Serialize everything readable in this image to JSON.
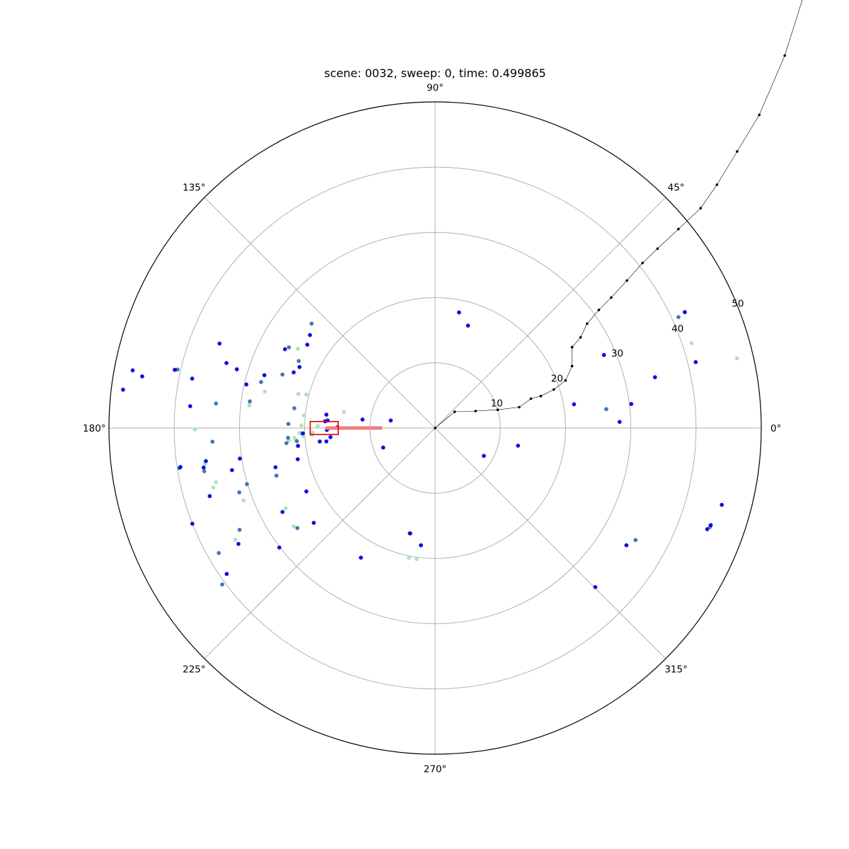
{
  "chart_data": {
    "type": "scatter",
    "projection": "polar",
    "title": "scene: 0032, sweep: 0, time: 0.499865",
    "theta_unit": "degrees",
    "rlim": [
      0,
      50
    ],
    "grid": true,
    "theta_tick_labels": [
      "0°",
      "45°",
      "90°",
      "135°",
      "180°",
      "225°",
      "270°",
      "315°"
    ],
    "r_ticks": [
      10,
      20,
      30,
      40,
      50
    ],
    "r_tick_labels": [
      "10",
      "20",
      "30",
      "40",
      "50"
    ],
    "colors": {
      "near": "#0000e0",
      "mid": "#3a6fb0",
      "far": "#a8e0b8",
      "trajectory": "#000000",
      "box": "#e00000",
      "heading": "#f08080"
    },
    "trajectory": [
      [
        0,
        0
      ],
      [
        3,
        2.5
      ],
      [
        6.2,
        2.6
      ],
      [
        9.6,
        2.8
      ],
      [
        12.9,
        3.2
      ],
      [
        14.7,
        4.5
      ],
      [
        16.2,
        4.9
      ],
      [
        18.2,
        5.9
      ],
      [
        20.0,
        7.3
      ],
      [
        21.0,
        9.5
      ],
      [
        21.0,
        12.4
      ],
      [
        22.3,
        13.9
      ],
      [
        23.3,
        16.0
      ],
      [
        25.1,
        18.1
      ],
      [
        27.0,
        20.0
      ],
      [
        29.4,
        22.6
      ],
      [
        31.8,
        25.3
      ],
      [
        34.1,
        27.5
      ],
      [
        37.3,
        30.5
      ],
      [
        40.7,
        33.7
      ],
      [
        43.2,
        37.3
      ],
      [
        46.3,
        42.4
      ],
      [
        49.7,
        48.0
      ],
      [
        53.6,
        57.1
      ],
      [
        56.5,
        66.3
      ],
      [
        59.9,
        77.1
      ],
      [
        62.1,
        88.2
      ],
      [
        64.8,
        98.7
      ],
      [
        67.6,
        107.0
      ],
      [
        70.6,
        115.2
      ],
      [
        73.4,
        120.5
      ],
      [
        75.6,
        125.8
      ],
      [
        77.8,
        131.6
      ],
      [
        80.4,
        136.0
      ]
    ],
    "ego_box": {
      "r": 17,
      "theta": 180,
      "length": 4.3,
      "width": 2.0
    },
    "heading_line": {
      "theta": 180,
      "r_start": 8.1,
      "r_end": 16.8
    },
    "series": [
      {
        "name": "near",
        "points": [
          [
            6.9,
            170.3
          ],
          [
            11.2,
            173.3
          ],
          [
            16.8,
            173.0
          ],
          [
            16.5,
            176.0
          ],
          [
            15.0,
            179.6
          ],
          [
            16.6,
            181.0
          ],
          [
            16.9,
            176.5
          ],
          [
            16.8,
            187.0
          ],
          [
            16.1,
            185.0
          ],
          [
            17.8,
            186.7
          ],
          [
            22.8,
            155.8
          ],
          [
            23.3,
            158.5
          ],
          [
            23.4,
            146.9
          ],
          [
            23.9,
            143.4
          ],
          [
            26.0,
            152.3
          ],
          [
            27.4,
            162.8
          ],
          [
            29.7,
            167.0
          ],
          [
            31.7,
            163.5
          ],
          [
            33.5,
            162.7
          ],
          [
            35.5,
            158.6
          ],
          [
            38.0,
            168.5
          ],
          [
            40.9,
            167.4
          ],
          [
            45.6,
            170.0
          ],
          [
            47.2,
            169.2
          ],
          [
            48.2,
            173.0
          ],
          [
            37.7,
            174.9
          ],
          [
            20.3,
            182.3
          ],
          [
            21.2,
            187.4
          ],
          [
            21.6,
            192.8
          ],
          [
            25.2,
            193.8
          ],
          [
            30.3,
            188.9
          ],
          [
            31.8,
            191.7
          ],
          [
            35.5,
            188.2
          ],
          [
            36.0,
            189.7
          ],
          [
            39.5,
            188.7
          ],
          [
            36.1,
            196.8
          ],
          [
            22.0,
            206.2
          ],
          [
            26.7,
            208.8
          ],
          [
            30.1,
            217.5
          ],
          [
            35.0,
            210.5
          ],
          [
            40.0,
            201.5
          ],
          [
            39.0,
            215.0
          ],
          [
            22.9,
            240.2
          ],
          [
            8.5,
            200.6
          ],
          [
            18.1,
            78.3
          ],
          [
            16.5,
            72.2
          ],
          [
            23.6,
            218.0
          ],
          [
            16.6,
            256.5
          ],
          [
            18.1,
            263.1
          ],
          [
            8.6,
            330.3
          ],
          [
            13.0,
            348.0
          ],
          [
            21.6,
            9.7
          ],
          [
            30.3,
            7.0
          ],
          [
            28.3,
            1.9
          ],
          [
            28.2,
            23.4
          ],
          [
            34.6,
            13.0
          ],
          [
            41.2,
            14.2
          ],
          [
            42.2,
            24.9
          ],
          [
            34.4,
            328.5
          ],
          [
            34.6,
            315.2
          ],
          [
            45.5,
            345.0
          ],
          [
            44.5,
            339.6
          ],
          [
            44.8,
            340.6
          ]
        ]
      },
      {
        "name": "mid",
        "points": [
          [
            22.5,
            178.4
          ],
          [
            21.8,
            172.0
          ],
          [
            23.3,
            153.8
          ],
          [
            25.6,
            151.1
          ],
          [
            24.8,
            160.7
          ],
          [
            28.7,
            171.8
          ],
          [
            34.2,
            183.5
          ],
          [
            22.9,
            185.8
          ],
          [
            31.6,
            198.2
          ],
          [
            30.1,
            196.6
          ],
          [
            36.0,
            190.6
          ],
          [
            39.7,
            188.9
          ],
          [
            26.1,
            216.0
          ],
          [
            33.8,
            207.5
          ],
          [
            38.3,
            210.0
          ],
          [
            24.8,
            139.8
          ],
          [
            27.6,
            165.2
          ],
          [
            40.5,
            167.2
          ],
          [
            33.8,
            173.6
          ],
          [
            22.6,
            183.8
          ],
          [
            26.4,
            6.3
          ],
          [
            41.0,
            24.5
          ],
          [
            35.2,
            330.8
          ],
          [
            44.8,
            340.2
          ],
          [
            40.5,
            216.3
          ],
          [
            16.6,
            256.8
          ],
          [
            21.3,
            185.4
          ],
          [
            25.4,
            196.7
          ]
        ]
      },
      {
        "name": "far",
        "points": [
          [
            20.4,
            165.4
          ],
          [
            26.7,
            167.9
          ],
          [
            22.5,
            184.9
          ],
          [
            21.6,
            184.0
          ],
          [
            14.2,
            170.0
          ],
          [
            24.3,
            150.0
          ],
          [
            28.7,
            173.0
          ],
          [
            18.0,
            179.0
          ],
          [
            18.8,
            182.1
          ],
          [
            36.8,
            180.3
          ],
          [
            35.2,
            195.0
          ],
          [
            35.7,
            188.9
          ],
          [
            34.6,
            193.9
          ],
          [
            31.4,
            200.7
          ],
          [
            35.1,
            209.2
          ],
          [
            26.4,
            214.8
          ],
          [
            20.8,
            182.0
          ],
          [
            20.5,
            182.5
          ],
          [
            18.9,
            183.3
          ],
          [
            20.2,
            183.5
          ],
          [
            20.5,
            178.9
          ],
          [
            20.2,
            174.5
          ],
          [
            20.3,
            258.6
          ],
          [
            20.3,
            262.0
          ],
          [
            47.5,
            13.0
          ],
          [
            41.4,
            18.3
          ],
          [
            21.6,
            166.0
          ],
          [
            26.0,
            208.2
          ]
        ]
      }
    ]
  }
}
